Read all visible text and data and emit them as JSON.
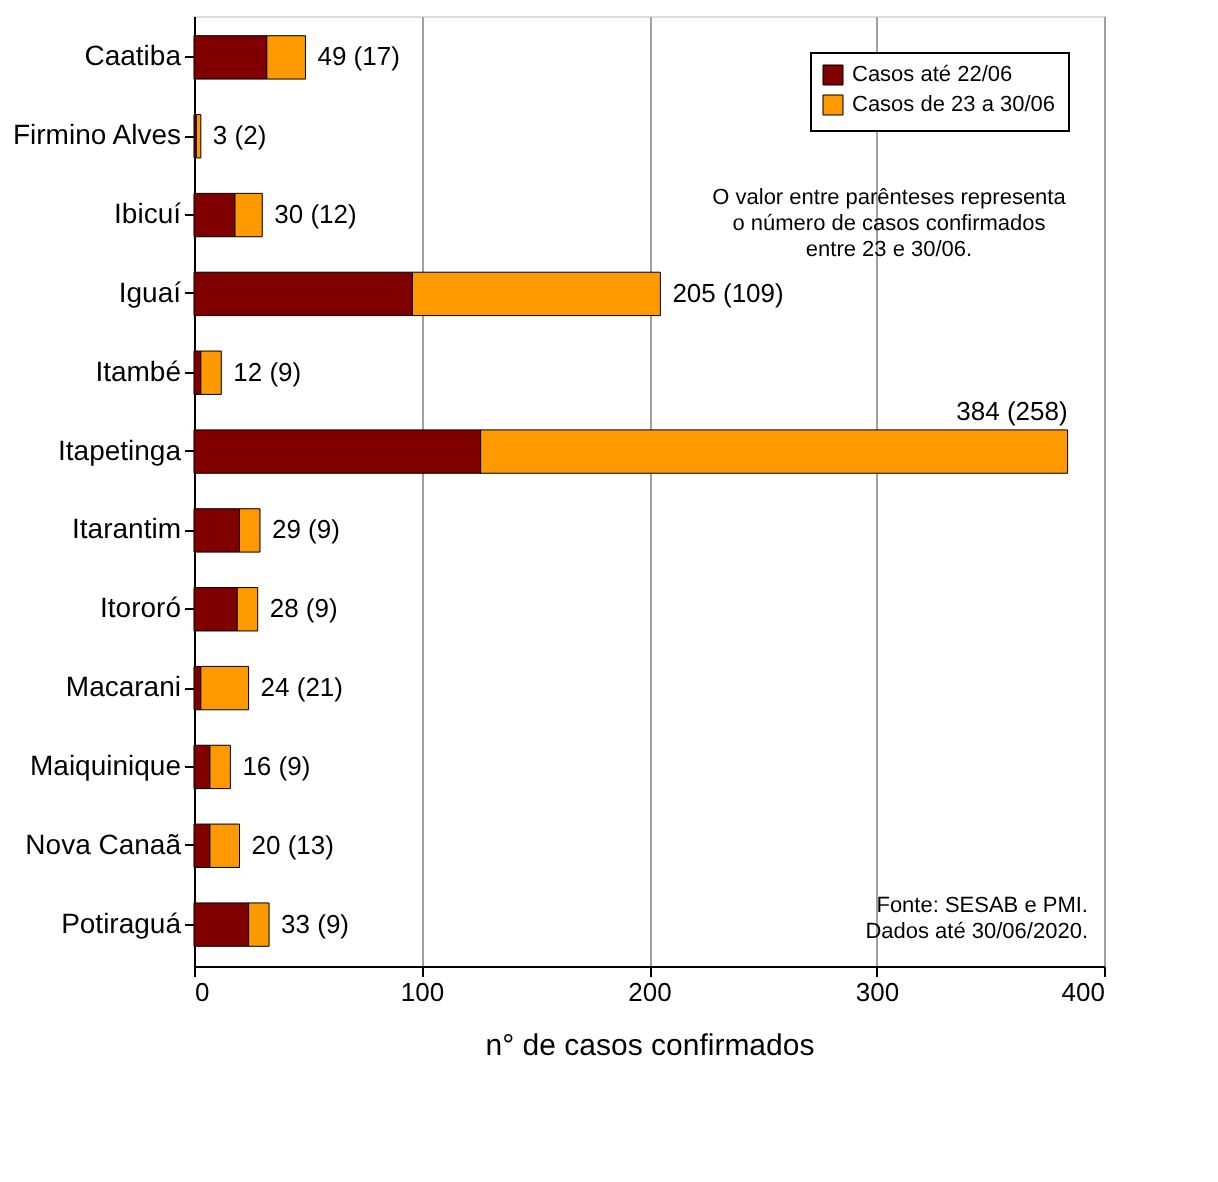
{
  "chart_data": {
    "type": "bar",
    "orientation": "horizontal",
    "stacked": true,
    "categories": [
      "Caatiba",
      "Firmino Alves",
      "Ibicuí",
      "Iguaí",
      "Itambé",
      "Itapetinga",
      "Itarantim",
      "Itororó",
      "Macarani",
      "Maiquinique",
      "Nova Canaã",
      "Potiraguá"
    ],
    "series": [
      {
        "name": "Casos até 22/06",
        "color": "#800000",
        "values": [
          32,
          1,
          18,
          96,
          3,
          126,
          20,
          19,
          3,
          7,
          7,
          24
        ]
      },
      {
        "name": "Casos de 23 a 30/06",
        "color": "#ff9900",
        "values": [
          17,
          2,
          12,
          109,
          9,
          258,
          9,
          9,
          21,
          9,
          13,
          9
        ]
      }
    ],
    "totals": [
      "49 (17)",
      "3 (2)",
      "30 (12)",
      "205 (109)",
      "12 (9)",
      "384 (258)",
      "29 (9)",
      "28 (9)",
      "24 (21)",
      "16 (9)",
      "20 (13)",
      "33 (9)"
    ],
    "xlim": [
      0,
      400
    ],
    "xticks": [
      0,
      100,
      200,
      300,
      400
    ],
    "grid": "x",
    "legend": "top right",
    "xlabel": "n° de casos confirmados",
    "annotations": [
      "O valor entre parênteses representa\no número de casos confirmados\nentre 23 e 30/06.",
      "Fonte: SESAB e PMI.\nDados até 30/06/2020."
    ]
  }
}
